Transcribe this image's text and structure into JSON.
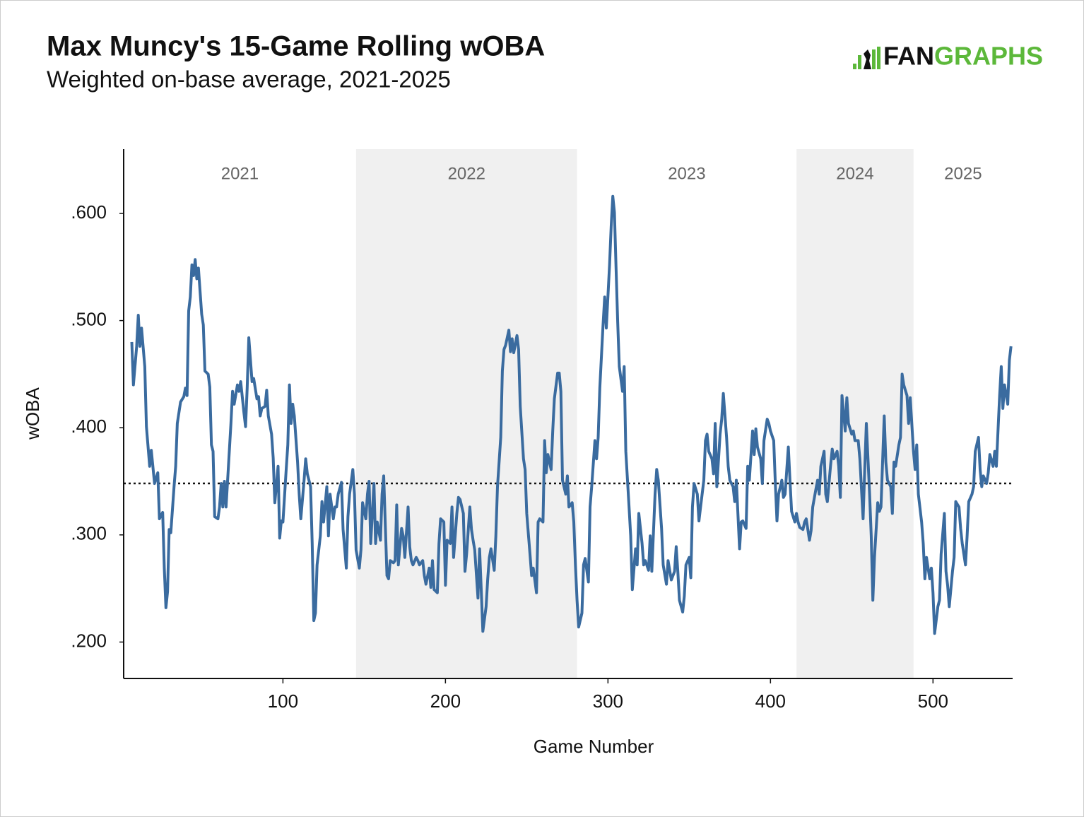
{
  "chart_data": {
    "type": "line",
    "title": "Max Muncy's 15-Game Rolling wOBA",
    "subtitle": "Weighted on-base average, 2021-2025",
    "logo_parts": [
      "FAN",
      "GRAPHS"
    ],
    "x_label": "Game Number",
    "y_label": "wOBA",
    "color": "#3a6b9f",
    "reference_line": 0.348,
    "xlim": [
      2,
      549
    ],
    "xticks": [
      100,
      200,
      300,
      400,
      500
    ],
    "ylim": [
      0.166,
      0.66
    ],
    "yticks": [
      {
        "value": 0.2,
        "label": ".200"
      },
      {
        "value": 0.3,
        "label": ".300"
      },
      {
        "value": 0.4,
        "label": ".400"
      },
      {
        "value": 0.5,
        "label": ".500"
      },
      {
        "value": 0.6,
        "label": ".600"
      }
    ],
    "seasons": [
      {
        "label": "2021",
        "start": 2,
        "end": 145,
        "shaded": false
      },
      {
        "label": "2022",
        "start": 145,
        "end": 281,
        "shaded": true
      },
      {
        "label": "2023",
        "start": 281,
        "end": 416,
        "shaded": false
      },
      {
        "label": "2024",
        "start": 416,
        "end": 488,
        "shaded": true
      },
      {
        "label": "2025",
        "start": 488,
        "end": 549,
        "shaded": false
      }
    ],
    "x": [
      7,
      8,
      10,
      11,
      12,
      13,
      15,
      16,
      18,
      19,
      21,
      23,
      24,
      26,
      27,
      28,
      29,
      30,
      31,
      33,
      34,
      35,
      37,
      39,
      40,
      41,
      42,
      43,
      44,
      45,
      46,
      47,
      48,
      50,
      51,
      52,
      54,
      55,
      56,
      57,
      58,
      60,
      61,
      62,
      63,
      64,
      65,
      67,
      68,
      69,
      70,
      72,
      73,
      74,
      76,
      77,
      78,
      79,
      81,
      82,
      84,
      85,
      86,
      87,
      89,
      90,
      91,
      93,
      94,
      95,
      97,
      98,
      99,
      100,
      102,
      103,
      104,
      105,
      106,
      107,
      109,
      110,
      111,
      113,
      114,
      115,
      117,
      118,
      119,
      120,
      121,
      123,
      124,
      125,
      127,
      128,
      129,
      131,
      132,
      133,
      134,
      136,
      137,
      139,
      140,
      141,
      143,
      144,
      145,
      147,
      148,
      149,
      151,
      152,
      153,
      154,
      156,
      157,
      158,
      160,
      161,
      162,
      164,
      165,
      166,
      168,
      169,
      170,
      171,
      173,
      174,
      175,
      177,
      178,
      179,
      180,
      182,
      183,
      184,
      186,
      187,
      188,
      190,
      191,
      192,
      193,
      195,
      196,
      197,
      199,
      200,
      201,
      203,
      204,
      205,
      207,
      208,
      209,
      211,
      212,
      213,
      215,
      216,
      217,
      218,
      220,
      221,
      222,
      223,
      225,
      226,
      227,
      228,
      230,
      231,
      232,
      234,
      235,
      236,
      237,
      239,
      240,
      241,
      242,
      244,
      245,
      246,
      248,
      249,
      250,
      252,
      253,
      254,
      256,
      257,
      258,
      260,
      261,
      262,
      263,
      265,
      266,
      267,
      269,
      270,
      271,
      272,
      274,
      275,
      276,
      278,
      279,
      280,
      281,
      282,
      284,
      285,
      286,
      288,
      289,
      290,
      292,
      293,
      294,
      295,
      297,
      298,
      299,
      301,
      302,
      303,
      304,
      305,
      306,
      307,
      309,
      310,
      311,
      313,
      314,
      315,
      317,
      318,
      319,
      321,
      322,
      323,
      325,
      326,
      327,
      329,
      330,
      331,
      333,
      334,
      336,
      337,
      338,
      339,
      341,
      342,
      343,
      344,
      346,
      347,
      348,
      350,
      351,
      352,
      353,
      355,
      356,
      357,
      359,
      360,
      361,
      362,
      364,
      365,
      366,
      367,
      369,
      370,
      371,
      373,
      374,
      375,
      377,
      378,
      379,
      381,
      382,
      383,
      385,
      386,
      387,
      389,
      390,
      391,
      392,
      394,
      395,
      396,
      398,
      399,
      400,
      402,
      403,
      404,
      405,
      407,
      408,
      409,
      411,
      412,
      413,
      415,
      416,
      417,
      418,
      420,
      421,
      422,
      424,
      425,
      426,
      428,
      429,
      430,
      431,
      433,
      434,
      435,
      437,
      438,
      439,
      441,
      442,
      443,
      444,
      446,
      447,
      448,
      450,
      451,
      452,
      454,
      455,
      457,
      458,
      459,
      461,
      462,
      463,
      464,
      466,
      467,
      468,
      470,
      471,
      472,
      474,
      475,
      476,
      477,
      479,
      480,
      481,
      482,
      484,
      485,
      486,
      488,
      489,
      490,
      491,
      493,
      494,
      495,
      496,
      498,
      499,
      500,
      501,
      503,
      504,
      505,
      507,
      508,
      509,
      510,
      512,
      513,
      514,
      516,
      517,
      518,
      520,
      521,
      522,
      524,
      525,
      526,
      528,
      529,
      530,
      531,
      533,
      534,
      535,
      537,
      538,
      539,
      541,
      542,
      543,
      544,
      546,
      547,
      548
    ],
    "values": [
      0.48,
      0.44,
      0.476,
      0.505,
      0.476,
      0.493,
      0.457,
      0.401,
      0.364,
      0.379,
      0.348,
      0.358,
      0.315,
      0.321,
      0.269,
      0.232,
      0.247,
      0.305,
      0.302,
      0.345,
      0.364,
      0.404,
      0.424,
      0.429,
      0.437,
      0.43,
      0.509,
      0.522,
      0.552,
      0.542,
      0.557,
      0.539,
      0.549,
      0.506,
      0.496,
      0.453,
      0.45,
      0.438,
      0.384,
      0.378,
      0.317,
      0.315,
      0.326,
      0.348,
      0.326,
      0.35,
      0.326,
      0.378,
      0.404,
      0.434,
      0.422,
      0.44,
      0.434,
      0.443,
      0.414,
      0.401,
      0.437,
      0.484,
      0.443,
      0.446,
      0.427,
      0.429,
      0.411,
      0.418,
      0.42,
      0.435,
      0.411,
      0.394,
      0.372,
      0.33,
      0.364,
      0.297,
      0.313,
      0.312,
      0.361,
      0.384,
      0.44,
      0.404,
      0.422,
      0.411,
      0.368,
      0.338,
      0.315,
      0.351,
      0.371,
      0.357,
      0.345,
      0.292,
      0.22,
      0.227,
      0.272,
      0.299,
      0.331,
      0.312,
      0.345,
      0.299,
      0.338,
      0.315,
      0.326,
      0.326,
      0.338,
      0.349,
      0.305,
      0.269,
      0.317,
      0.338,
      0.361,
      0.338,
      0.286,
      0.269,
      0.286,
      0.33,
      0.315,
      0.338,
      0.35,
      0.292,
      0.348,
      0.292,
      0.312,
      0.295,
      0.338,
      0.355,
      0.262,
      0.259,
      0.276,
      0.274,
      0.276,
      0.328,
      0.272,
      0.306,
      0.299,
      0.279,
      0.326,
      0.289,
      0.276,
      0.272,
      0.279,
      0.276,
      0.272,
      0.276,
      0.262,
      0.254,
      0.269,
      0.251,
      0.276,
      0.249,
      0.246,
      0.292,
      0.315,
      0.312,
      0.253,
      0.295,
      0.292,
      0.326,
      0.279,
      0.32,
      0.335,
      0.333,
      0.32,
      0.266,
      0.282,
      0.326,
      0.305,
      0.295,
      0.286,
      0.241,
      0.287,
      0.249,
      0.21,
      0.233,
      0.259,
      0.279,
      0.287,
      0.267,
      0.299,
      0.345,
      0.391,
      0.453,
      0.473,
      0.477,
      0.491,
      0.471,
      0.483,
      0.47,
      0.486,
      0.473,
      0.42,
      0.371,
      0.361,
      0.32,
      0.282,
      0.262,
      0.269,
      0.246,
      0.312,
      0.315,
      0.312,
      0.388,
      0.358,
      0.375,
      0.361,
      0.397,
      0.427,
      0.451,
      0.451,
      0.434,
      0.351,
      0.338,
      0.355,
      0.326,
      0.33,
      0.312,
      0.272,
      0.239,
      0.214,
      0.227,
      0.272,
      0.278,
      0.256,
      0.326,
      0.345,
      0.388,
      0.371,
      0.391,
      0.437,
      0.496,
      0.522,
      0.493,
      0.552,
      0.588,
      0.616,
      0.601,
      0.549,
      0.499,
      0.457,
      0.434,
      0.457,
      0.378,
      0.326,
      0.299,
      0.249,
      0.287,
      0.272,
      0.32,
      0.292,
      0.272,
      0.276,
      0.267,
      0.299,
      0.266,
      0.338,
      0.361,
      0.351,
      0.306,
      0.272,
      0.254,
      0.276,
      0.267,
      0.258,
      0.266,
      0.289,
      0.266,
      0.239,
      0.228,
      0.243,
      0.272,
      0.279,
      0.26,
      0.326,
      0.348,
      0.338,
      0.313,
      0.326,
      0.351,
      0.388,
      0.394,
      0.378,
      0.371,
      0.357,
      0.404,
      0.345,
      0.394,
      0.408,
      0.432,
      0.391,
      0.364,
      0.351,
      0.345,
      0.331,
      0.351,
      0.287,
      0.312,
      0.313,
      0.306,
      0.364,
      0.351,
      0.397,
      0.375,
      0.399,
      0.382,
      0.371,
      0.348,
      0.388,
      0.408,
      0.404,
      0.397,
      0.388,
      0.348,
      0.313,
      0.338,
      0.351,
      0.335,
      0.338,
      0.382,
      0.351,
      0.322,
      0.312,
      0.32,
      0.312,
      0.307,
      0.305,
      0.312,
      0.315,
      0.295,
      0.304,
      0.326,
      0.343,
      0.351,
      0.338,
      0.364,
      0.378,
      0.338,
      0.331,
      0.365,
      0.38,
      0.371,
      0.378,
      0.364,
      0.335,
      0.43,
      0.397,
      0.428,
      0.404,
      0.394,
      0.397,
      0.388,
      0.388,
      0.371,
      0.315,
      0.361,
      0.404,
      0.338,
      0.299,
      0.239,
      0.279,
      0.33,
      0.322,
      0.326,
      0.411,
      0.368,
      0.351,
      0.345,
      0.32,
      0.368,
      0.364,
      0.384,
      0.391,
      0.45,
      0.44,
      0.43,
      0.404,
      0.428,
      0.378,
      0.361,
      0.384,
      0.338,
      0.312,
      0.292,
      0.259,
      0.279,
      0.259,
      0.269,
      0.246,
      0.208,
      0.233,
      0.239,
      0.282,
      0.32,
      0.266,
      0.253,
      0.233,
      0.266,
      0.279,
      0.331,
      0.326,
      0.306,
      0.292,
      0.272,
      0.299,
      0.331,
      0.338,
      0.345,
      0.378,
      0.391,
      0.361,
      0.345,
      0.355,
      0.348,
      0.358,
      0.375,
      0.364,
      0.378,
      0.364,
      0.43,
      0.457,
      0.418,
      0.44,
      0.422,
      0.463,
      0.476
    ]
  }
}
